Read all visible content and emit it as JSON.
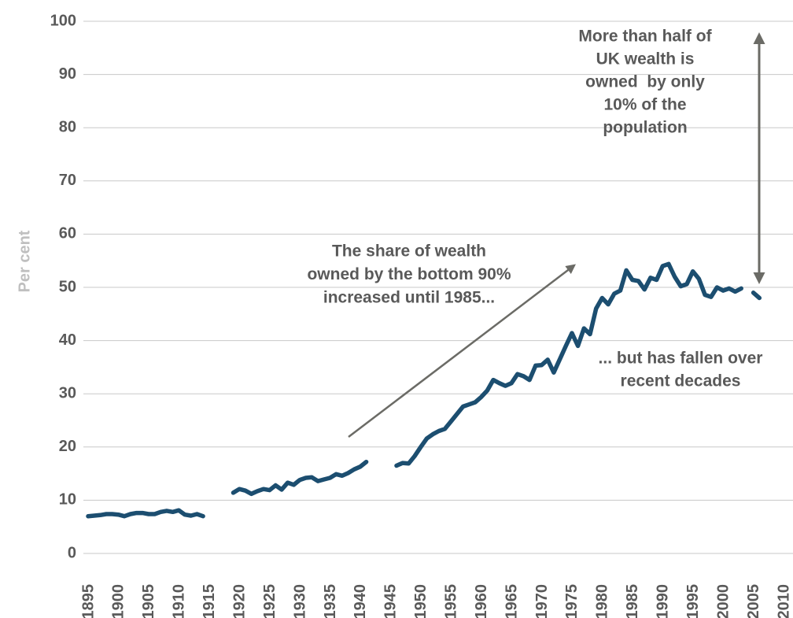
{
  "chart_data": {
    "type": "line",
    "y_label": "Per cent",
    "annotations": [
      {
        "lines": [
          "More than half of",
          "UK wealth is",
          "owned  by only",
          "10% of the",
          "population"
        ]
      },
      {
        "lines": [
          "The share of wealth",
          "owned by the bottom 90%",
          "increased until 1985..."
        ]
      },
      {
        "lines": [
          "... but has fallen over",
          "recent decades"
        ]
      }
    ],
    "x": [
      1895,
      1896,
      1897,
      1898,
      1899,
      1900,
      1901,
      1902,
      1903,
      1904,
      1905,
      1906,
      1907,
      1908,
      1909,
      1910,
      1911,
      1912,
      1913,
      1914,
      1915,
      1916,
      1917,
      1918,
      1919,
      1920,
      1921,
      1922,
      1923,
      1924,
      1925,
      1926,
      1927,
      1928,
      1929,
      1930,
      1931,
      1932,
      1933,
      1934,
      1935,
      1936,
      1937,
      1938,
      1939,
      1940,
      1941,
      1942,
      1943,
      1944,
      1945,
      1946,
      1947,
      1948,
      1949,
      1950,
      1951,
      1952,
      1953,
      1954,
      1955,
      1956,
      1957,
      1958,
      1959,
      1960,
      1961,
      1962,
      1963,
      1964,
      1965,
      1966,
      1967,
      1968,
      1969,
      1970,
      1971,
      1972,
      1973,
      1974,
      1975,
      1976,
      1977,
      1978,
      1979,
      1980,
      1981,
      1982,
      1983,
      1984,
      1985,
      1986,
      1987,
      1988,
      1989,
      1990,
      1991,
      1992,
      1993,
      1994,
      1995,
      1996,
      1997,
      1998,
      1999,
      2000,
      2001,
      2002,
      2003,
      2004,
      2005,
      2006
    ],
    "series": [
      {
        "color": "#1c4e70",
        "values": [
          7,
          7.1,
          7.2,
          7.4,
          7.4,
          7.3,
          7.0,
          7.4,
          7.6,
          7.6,
          7.4,
          7.4,
          7.8,
          8.0,
          7.8,
          8.1,
          7.3,
          7.1,
          7.4,
          7.0,
          null,
          null,
          null,
          null,
          11.4,
          12.1,
          11.8,
          11.2,
          11.7,
          12.1,
          11.9,
          12.8,
          12.0,
          13.3,
          12.9,
          13.8,
          14.2,
          14.3,
          13.6,
          13.9,
          14.2,
          14.9,
          14.6,
          15.1,
          15.8,
          16.3,
          17.2,
          null,
          null,
          null,
          null,
          16.5,
          17.0,
          16.9,
          18.3,
          20.0,
          21.6,
          22.4,
          23.0,
          23.4,
          24.8,
          26.2,
          27.6,
          28.0,
          28.4,
          29.4,
          30.6,
          32.6,
          32.0,
          31.5,
          32.0,
          33.7,
          33.3,
          32.6,
          35.3,
          35.4,
          36.4,
          34.0,
          36.5,
          39.0,
          41.4,
          39.0,
          42.3,
          41.2,
          46.0,
          48.0,
          46.8,
          48.8,
          49.4,
          53.2,
          51.4,
          51.2,
          49.6,
          51.8,
          51.4,
          54.0,
          54.4,
          52.0,
          50.2,
          50.6,
          53.0,
          51.6,
          48.6,
          48.2,
          50.0,
          49.4,
          49.8,
          49.2,
          49.8,
          null,
          49.0,
          48.0
        ]
      }
    ],
    "xlim": [
      1895,
      2010
    ],
    "xticks": [
      1895,
      1900,
      1905,
      1910,
      1915,
      1920,
      1925,
      1930,
      1935,
      1940,
      1945,
      1950,
      1955,
      1960,
      1965,
      1970,
      1975,
      1980,
      1985,
      1990,
      1995,
      2000,
      2005,
      2010
    ],
    "ylim": [
      0,
      100
    ],
    "yticks": [
      0,
      10,
      20,
      30,
      40,
      50,
      60,
      70,
      80,
      90,
      100
    ],
    "grid": true
  }
}
